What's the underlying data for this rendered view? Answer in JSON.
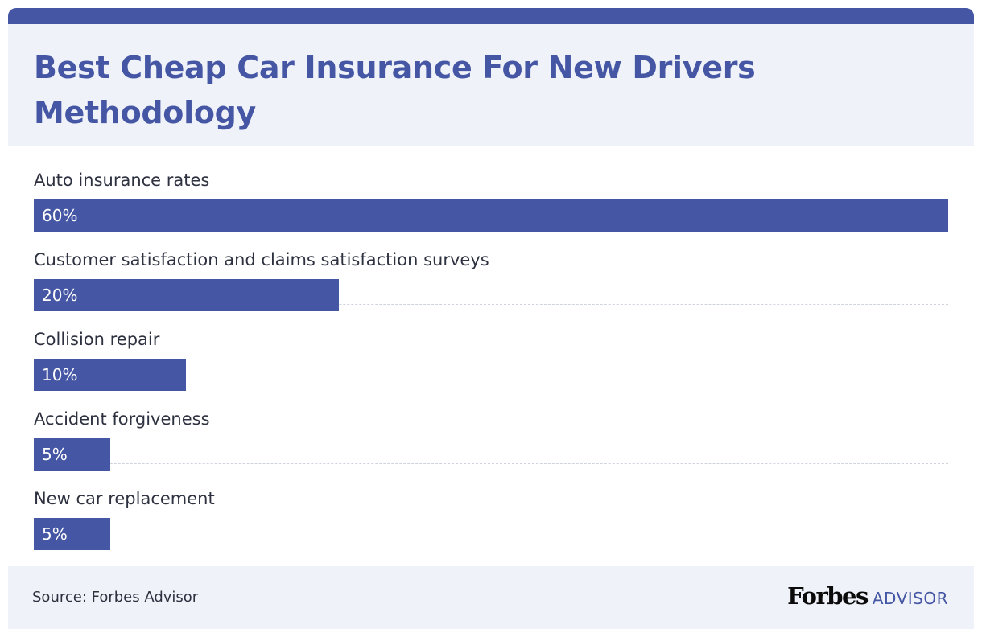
{
  "header": {
    "title_line1": "Best Cheap Car Insurance For New Drivers",
    "title_line2": "Methodology"
  },
  "colors": {
    "accent": "#4557a4",
    "panel": "#eff2f8"
  },
  "chart_data": {
    "type": "bar",
    "orientation": "horizontal",
    "title": "Best Cheap Car Insurance For New Drivers Methodology",
    "categories": [
      "Auto insurance rates",
      "Customer satisfaction and claims satisfaction surveys",
      "Collision repair",
      "Accident forgiveness",
      "New car replacement"
    ],
    "values": [
      60,
      20,
      10,
      5,
      5
    ],
    "value_labels": [
      "60%",
      "20%",
      "10%",
      "5%",
      "5%"
    ],
    "unit": "%",
    "xlim": [
      0,
      60
    ],
    "grid": false,
    "legend": "none"
  },
  "footer": {
    "source": "Source: Forbes Advisor",
    "logo_main": "Forbes",
    "logo_sub": "ADVISOR"
  }
}
